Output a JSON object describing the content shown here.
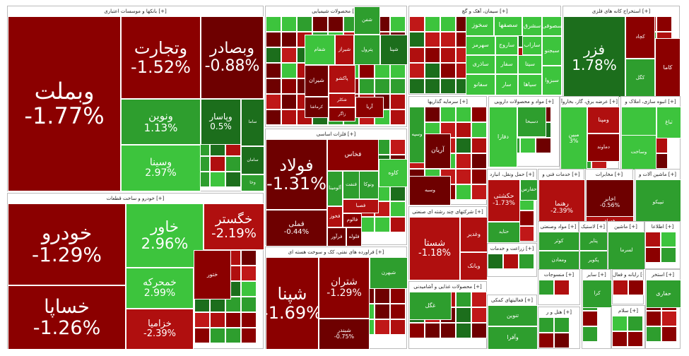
{
  "colors": {
    "dr": "#6e0000",
    "md": "#8b0000",
    "rd": "#b00f0f",
    "gd": "#1c6e1c",
    "gr": "#2e9e2e",
    "gl": "#3dc43d",
    "gy": "#23b023"
  },
  "chart_data": {
    "type": "treemap",
    "sectors": [
      {
        "id": "banks",
        "title": "بانکها و موسسات اعتباری [+]",
        "tiles": [
          {
            "n": "وبملت",
            "v": "-1.77%",
            "c": "md"
          },
          {
            "n": "وتجارت",
            "v": "-1.52%",
            "c": "md"
          },
          {
            "n": "وبصادر",
            "v": "-0.88%",
            "c": "dr"
          },
          {
            "n": "ونوین",
            "v": "1.13%",
            "c": "gr"
          },
          {
            "n": "وپاسار",
            "v": "0.5%",
            "c": "gd"
          },
          {
            "n": "وسینا",
            "v": "2.97%",
            "c": "gl"
          },
          {
            "n": "ساما",
            "v": "",
            "c": "gd"
          },
          {
            "n": "سامان",
            "v": "",
            "c": "gd"
          },
          {
            "n": "وخا",
            "v": "",
            "c": "gr"
          }
        ]
      },
      {
        "id": "auto",
        "title": "خودرو و ساخت قطعات [+]",
        "tiles": [
          {
            "n": "خودرو",
            "v": "-1.29%",
            "c": "md"
          },
          {
            "n": "خساپا",
            "v": "-1.26%",
            "c": "md"
          },
          {
            "n": "خاور",
            "v": "2.96%",
            "c": "gl"
          },
          {
            "n": "خگستر",
            "v": "-2.19%",
            "c": "rd"
          },
          {
            "n": "خمحرکه",
            "v": "2.99%",
            "c": "gl"
          },
          {
            "n": "خزامیا",
            "v": "-2.39%",
            "c": "rd"
          },
          {
            "n": "ختور",
            "v": "",
            "c": "md"
          }
        ]
      },
      {
        "id": "chem",
        "title": "محصولات شیمیایی [+]",
        "tiles": [
          {
            "n": "شفن",
            "v": "",
            "c": "gr"
          },
          {
            "n": "پترول",
            "v": "",
            "c": "gr"
          },
          {
            "n": "شیراز",
            "v": "",
            "c": "rd"
          },
          {
            "n": "شپنا",
            "v": "",
            "c": "gd"
          },
          {
            "n": "شیران",
            "v": "",
            "c": "dr"
          },
          {
            "n": "پاکشو",
            "v": "",
            "c": "rd"
          },
          {
            "n": "شکلر",
            "v": "",
            "c": "rd"
          },
          {
            "n": "کرماشا",
            "v": "",
            "c": "dr"
          },
          {
            "n": "زاگر",
            "v": "",
            "c": "md"
          },
          {
            "n": "آریا",
            "v": "",
            "c": "md"
          },
          {
            "n": "شفام",
            "v": "",
            "c": "gl"
          }
        ]
      },
      {
        "id": "metal",
        "title": "فلزات اساسی [+]",
        "tiles": [
          {
            "n": "فولاد",
            "v": "-1.31%",
            "c": "dr"
          },
          {
            "n": "فملی",
            "v": "-0.44%",
            "c": "dr"
          },
          {
            "n": "فخاس",
            "v": "",
            "c": "md"
          },
          {
            "n": "کاوه",
            "v": "",
            "c": "gl"
          },
          {
            "n": "ونوکا",
            "v": "",
            "c": "gr"
          },
          {
            "n": "فنفت",
            "v": "",
            "c": "gr"
          },
          {
            "n": "آلومینا",
            "v": "",
            "c": "gr"
          },
          {
            "n": "فصبا",
            "v": "",
            "c": "rd"
          },
          {
            "n": "فخوز",
            "v": "",
            "c": "rd"
          },
          {
            "n": "فالوم",
            "v": "",
            "c": "md"
          },
          {
            "n": "فرآور",
            "v": "",
            "c": "dr"
          },
          {
            "n": "فلوله",
            "v": "",
            "c": "dr"
          }
        ]
      },
      {
        "id": "oil",
        "title": "فراورده های نفتی، کک و سوخت هسته ای [+]",
        "tiles": [
          {
            "n": "شپنا",
            "v": "-1.69%",
            "c": "md"
          },
          {
            "n": "شتران",
            "v": "-1.29%",
            "c": "md"
          },
          {
            "n": "شبندر",
            "v": "-0.75%",
            "c": "dr"
          },
          {
            "n": "شبهرن",
            "v": "",
            "c": "gr"
          }
        ]
      },
      {
        "id": "cement",
        "title": "سیمان، آهک و گچ [+]",
        "tiles": [
          {
            "n": "سخوز",
            "v": "",
            "c": "gl"
          },
          {
            "n": "سصفها",
            "v": "",
            "c": "gl"
          },
          {
            "n": "سشرق",
            "v": "",
            "c": "gl"
          },
          {
            "n": "ساروج",
            "v": "",
            "c": "gl"
          },
          {
            "n": "سهرمز",
            "v": "",
            "c": "gl"
          },
          {
            "n": "ساراب",
            "v": "",
            "c": "gl"
          },
          {
            "n": "ساذری",
            "v": "",
            "c": "gl"
          },
          {
            "n": "سفار",
            "v": "",
            "c": "gl"
          },
          {
            "n": "سیتا",
            "v": "",
            "c": "gl"
          },
          {
            "n": "سفانو",
            "v": "",
            "c": "gl"
          },
          {
            "n": "سار",
            "v": "",
            "c": "gl"
          },
          {
            "n": "سیاها",
            "v": "",
            "c": "gl"
          },
          {
            "n": "سصوفی",
            "v": "",
            "c": "gl"
          },
          {
            "n": "سبجنو",
            "v": "",
            "c": "gl"
          },
          {
            "n": "سبزوا",
            "v": "",
            "c": "gl"
          }
        ]
      },
      {
        "id": "mining",
        "title": "استخراج کانه های فلزی [+]",
        "tiles": [
          {
            "n": "فزر",
            "v": "1.78%",
            "c": "gd"
          },
          {
            "n": "کاما",
            "v": "",
            "c": "md"
          },
          {
            "n": "کچاد",
            "v": "",
            "c": "md"
          },
          {
            "n": "کگل",
            "v": "",
            "c": "gr"
          }
        ]
      },
      {
        "id": "invest",
        "title": "سرمایه گذاریها [+]",
        "tiles": [
          {
            "n": "آریان",
            "v": "",
            "c": "dr"
          },
          {
            "n": "وسبه",
            "v": "",
            "c": "dr"
          },
          {
            "n": "وسپه",
            "v": "",
            "c": "gr"
          }
        ]
      },
      {
        "id": "pharma",
        "title": "مواد و محصولات دارویی [+]",
        "tiles": [
          {
            "n": "دفارا",
            "v": "",
            "c": "gl"
          },
          {
            "n": "دسبحا",
            "v": "",
            "c": "gr"
          }
        ]
      },
      {
        "id": "utility",
        "title": "عرضه برق، گاز، بخاروآ [+]",
        "tiles": [
          {
            "n": "مبین",
            "v": "3%",
            "c": "gl"
          },
          {
            "n": "ومپنا",
            "v": "",
            "c": "rd"
          },
          {
            "n": "دماوند",
            "v": "",
            "c": "md"
          }
        ]
      },
      {
        "id": "realestate",
        "title": "انبوه سازی، املاک و [+]",
        "tiles": [
          {
            "n": "ثروند",
            "v": "",
            "c": "gl"
          },
          {
            "n": "ثباغ",
            "v": "",
            "c": "gl"
          },
          {
            "n": "وساخت",
            "v": "",
            "c": "gl"
          }
        ]
      },
      {
        "id": "multi",
        "title": "شرکتهای چند رشته ای صنعتی [+]",
        "tiles": [
          {
            "n": "شستا",
            "v": "-1.18%",
            "c": "rd"
          },
          {
            "n": "وغدیر",
            "v": "",
            "c": "rd"
          },
          {
            "n": "وبانک",
            "v": "",
            "c": "rd"
          }
        ]
      },
      {
        "id": "transport",
        "title": "حمل ونقل، انبارد [+]",
        "tiles": [
          {
            "n": "حکشتی",
            "v": "-1.73%",
            "c": "rd"
          },
          {
            "n": "حفارس",
            "v": "",
            "c": "gr"
          },
          {
            "n": "حتاید",
            "v": "",
            "c": "gr"
          }
        ]
      },
      {
        "id": "tech",
        "title": "خدمات فنی و [+]",
        "tiles": [
          {
            "n": "رهنما",
            "v": "-2.39%",
            "c": "rd"
          }
        ]
      },
      {
        "id": "telecom",
        "title": "مخابرات [+]",
        "tiles": [
          {
            "n": "اخابر",
            "v": "-0.56%",
            "c": "dr"
          },
          {
            "n": "همراه",
            "v": "",
            "c": "rd"
          }
        ]
      },
      {
        "id": "machine",
        "title": "ماشین آلات و [+]",
        "tiles": [
          {
            "n": "تیپیکو",
            "v": "",
            "c": "gr"
          }
        ]
      },
      {
        "id": "agri",
        "title": "زراعت و خدمات [+]",
        "tiles": []
      },
      {
        "id": "fertil",
        "title": "مواد وصنعتی [+]",
        "tiles": [
          {
            "n": "کوثر",
            "v": "",
            "c": "gr"
          },
          {
            "n": "ومعادن",
            "v": "",
            "c": "gr"
          }
        ]
      },
      {
        "id": "plastic",
        "title": "لاستیک [+]",
        "tiles": [
          {
            "n": "پتایر",
            "v": "",
            "c": "gr"
          },
          {
            "n": "پکویر",
            "v": "",
            "c": "gr"
          }
        ]
      },
      {
        "id": "machine2",
        "title": "ماشین [+]",
        "tiles": [
          {
            "n": "لسرما",
            "v": "",
            "c": "gr"
          }
        ]
      },
      {
        "id": "info",
        "title": "اطلاعا [+]",
        "tiles": []
      },
      {
        "id": "food",
        "title": "محصولات غذایی و آشامیدنی [+]",
        "tiles": [
          {
            "n": "غگل",
            "v": "",
            "c": "gr"
          }
        ]
      },
      {
        "id": "textile",
        "title": "منسوجات [+]",
        "tiles": []
      },
      {
        "id": "aux",
        "title": "فعالیتهای کمکی [+]",
        "tiles": [
          {
            "n": "تنوین",
            "v": "",
            "c": "gr"
          },
          {
            "n": "وآفرا",
            "v": "",
            "c": "gr"
          }
        ]
      },
      {
        "id": "hotel",
        "title": "هتل و ر [+]",
        "tiles": []
      },
      {
        "id": "otherfin",
        "title": "سایر [+]",
        "tiles": [
          {
            "n": "کرا",
            "v": "",
            "c": "gr"
          }
        ]
      },
      {
        "id": "health",
        "title": "سلام [+]",
        "tiles": []
      },
      {
        "id": "leasing",
        "title": "رایانه و فعال [+]",
        "tiles": []
      },
      {
        "id": "dairy",
        "title": "استخر [+]",
        "tiles": [
          {
            "n": "حفاری",
            "v": "",
            "c": "gr"
          }
        ]
      }
    ]
  }
}
